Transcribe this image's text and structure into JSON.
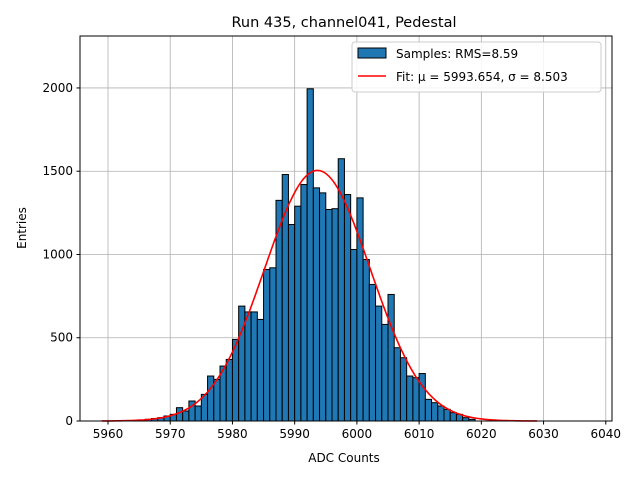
{
  "chart_data": {
    "type": "bar",
    "title": "Run 435, channel041, Pedestal",
    "xlabel": "ADC Counts",
    "ylabel": "Entries",
    "xlim": [
      5955.5,
      6041
    ],
    "ylim": [
      0,
      2312
    ],
    "xticks": [
      5960,
      5970,
      5980,
      5990,
      6000,
      6010,
      6020,
      6030,
      6040
    ],
    "yticks": [
      0,
      500,
      1000,
      1500,
      2000
    ],
    "grid": true,
    "legend_position": "top-right",
    "bin_width": 1,
    "bins": [
      5966,
      5967,
      5968,
      5969,
      5970,
      5971,
      5972,
      5973,
      5974,
      5975,
      5976,
      5977,
      5978,
      5979,
      5980,
      5981,
      5982,
      5983,
      5984,
      5985,
      5986,
      5987,
      5988,
      5989,
      5990,
      5991,
      5992,
      5993,
      5994,
      5995,
      5996,
      5997,
      5998,
      5999,
      6000,
      6001,
      6002,
      6003,
      6004,
      6005,
      6006,
      6007,
      6008,
      6009,
      6010,
      6011,
      6012,
      6013,
      6014,
      6015,
      6016,
      6017,
      6018
    ],
    "values": [
      10,
      15,
      20,
      30,
      40,
      80,
      60,
      120,
      90,
      160,
      270,
      250,
      330,
      370,
      490,
      690,
      655,
      655,
      610,
      910,
      920,
      1325,
      1480,
      1180,
      1290,
      1420,
      1995,
      1400,
      1370,
      1270,
      1275,
      1575,
      1360,
      1030,
      1340,
      970,
      820,
      690,
      580,
      760,
      440,
      380,
      270,
      260,
      285,
      130,
      110,
      90,
      70,
      50,
      40,
      20,
      10
    ],
    "series": [
      {
        "name": "Samples: RMS=8.59",
        "type": "histogram",
        "color": "#1f77b4"
      },
      {
        "name": "Fit: μ = 5993.654, σ = 8.503",
        "type": "line",
        "color": "#ff0000",
        "mu": 5993.654,
        "sigma": 8.503,
        "amplitude": 1505,
        "range": [
          5959,
          6029
        ]
      }
    ]
  }
}
